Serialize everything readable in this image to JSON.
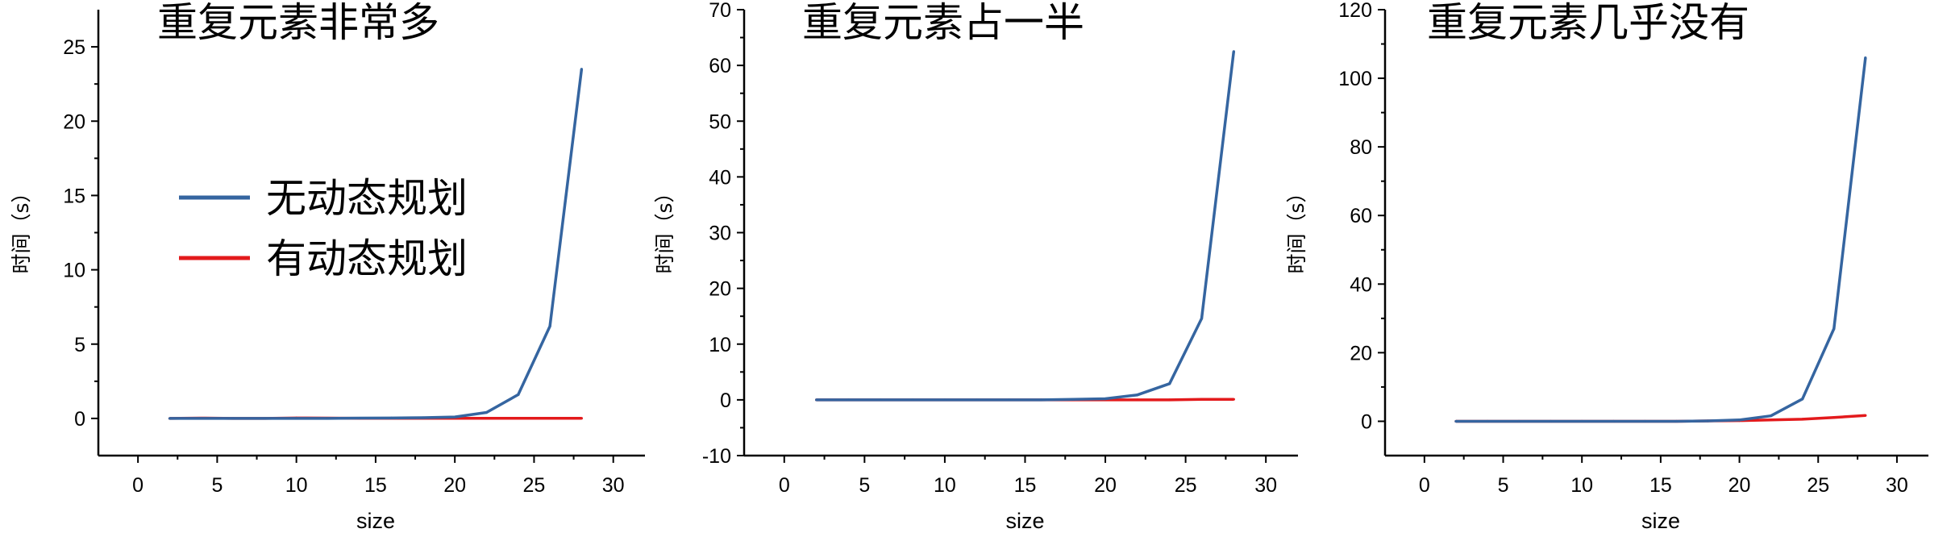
{
  "chart_data": [
    {
      "type": "line",
      "title": "重复元素非常多",
      "xlabel": "size",
      "ylabel": "时间（s）",
      "xlim": [
        -2.5,
        32
      ],
      "ylim": [
        -2.5,
        27.5
      ],
      "xticks": [
        0,
        5,
        10,
        15,
        20,
        25,
        30
      ],
      "yticks": [
        0,
        5,
        10,
        15,
        20,
        25
      ],
      "legend": "center-left",
      "grid": false,
      "series": [
        {
          "name": "无动态规划",
          "color": "#3565a0",
          "x": [
            2,
            4,
            6,
            8,
            10,
            12,
            14,
            16,
            18,
            20,
            22,
            24,
            26,
            28
          ],
          "y": [
            0,
            0,
            0,
            0,
            0,
            0,
            0.02,
            0.03,
            0.05,
            0.1,
            0.4,
            1.6,
            6.2,
            23.5
          ]
        },
        {
          "name": "有动态规划",
          "color": "#e31a1c",
          "x": [
            2,
            4,
            6,
            8,
            10,
            12,
            14,
            16,
            18,
            20,
            22,
            24,
            26,
            28
          ],
          "y": [
            0,
            0.02,
            0,
            0,
            0.03,
            0.02,
            0.01,
            0.01,
            0.01,
            0.01,
            0.01,
            0.01,
            0.01,
            0.01
          ]
        }
      ]
    },
    {
      "type": "line",
      "title": "重复元素占一半",
      "xlabel": "size",
      "ylabel": "时间（s）",
      "xlim": [
        -2.5,
        32
      ],
      "ylim": [
        -10,
        70
      ],
      "xticks": [
        0,
        5,
        10,
        15,
        20,
        25,
        30
      ],
      "yticks": [
        -10,
        0,
        10,
        20,
        30,
        40,
        50,
        60,
        70
      ],
      "grid": false,
      "series": [
        {
          "name": "无动态规划",
          "color": "#3565a0",
          "x": [
            2,
            4,
            6,
            8,
            10,
            12,
            14,
            16,
            18,
            20,
            22,
            24,
            26,
            28
          ],
          "y": [
            0,
            0,
            0,
            0,
            0,
            0,
            0,
            0,
            0.1,
            0.2,
            0.9,
            2.9,
            14.6,
            62.5
          ]
        },
        {
          "name": "有动态规划",
          "color": "#e31a1c",
          "x": [
            2,
            4,
            6,
            8,
            10,
            12,
            14,
            16,
            18,
            20,
            22,
            24,
            26,
            28
          ],
          "y": [
            0,
            0,
            0,
            0,
            0,
            0,
            0,
            0,
            0,
            0,
            0,
            0,
            0.1,
            0.1
          ]
        }
      ]
    },
    {
      "type": "line",
      "title": "重复元素几乎没有",
      "xlabel": "size",
      "ylabel": "时间（s）",
      "xlim": [
        -2.5,
        32
      ],
      "ylim": [
        -10,
        120
      ],
      "xticks": [
        0,
        5,
        10,
        15,
        20,
        25,
        30
      ],
      "yticks": [
        0,
        20,
        40,
        60,
        80,
        100,
        120
      ],
      "grid": false,
      "series": [
        {
          "name": "无动态规划",
          "color": "#3565a0",
          "x": [
            2,
            4,
            6,
            8,
            10,
            12,
            14,
            16,
            18,
            20,
            22,
            24,
            26,
            28
          ],
          "y": [
            0,
            0,
            0,
            0,
            0,
            0,
            0,
            0,
            0.1,
            0.4,
            1.6,
            6.5,
            27,
            106
          ]
        },
        {
          "name": "有动态规划",
          "color": "#e31a1c",
          "x": [
            2,
            4,
            6,
            8,
            10,
            12,
            14,
            16,
            18,
            20,
            22,
            24,
            26,
            28
          ],
          "y": [
            0,
            0,
            0,
            0,
            0,
            0,
            0,
            0,
            0.1,
            0.2,
            0.4,
            0.6,
            1.1,
            1.7
          ]
        }
      ]
    }
  ]
}
